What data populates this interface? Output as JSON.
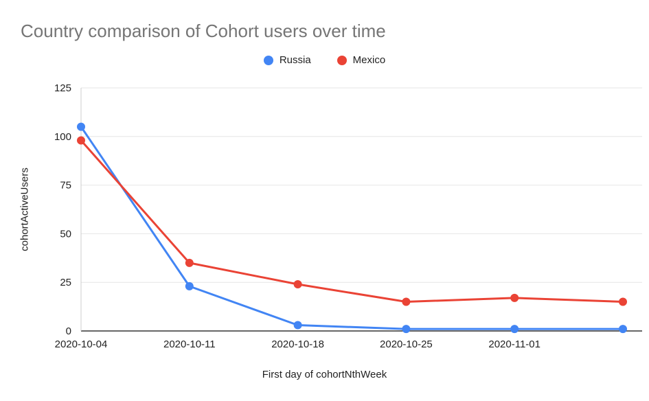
{
  "chart_data": {
    "type": "line",
    "title": "Country comparison of Cohort users over time",
    "xlabel": "First day of cohortNthWeek",
    "ylabel": "cohortActiveUsers",
    "categories": [
      "2020-10-04",
      "2020-10-11",
      "2020-10-18",
      "2020-10-25",
      "2020-11-01",
      ""
    ],
    "series": [
      {
        "name": "Russia",
        "color": "#4285f4",
        "values": [
          105,
          23,
          3,
          1,
          1,
          1
        ]
      },
      {
        "name": "Mexico",
        "color": "#ea4335",
        "values": [
          98,
          35,
          24,
          15,
          17,
          15
        ]
      }
    ],
    "ylim": [
      0,
      125
    ],
    "yticks": [
      0,
      25,
      50,
      75,
      100,
      125
    ],
    "grid": true,
    "legend_position": "top",
    "grid_color": "#e6e6e6",
    "baseline_color": "#333333",
    "y_axis_line_color": "#cccccc",
    "title_color": "#757575"
  }
}
